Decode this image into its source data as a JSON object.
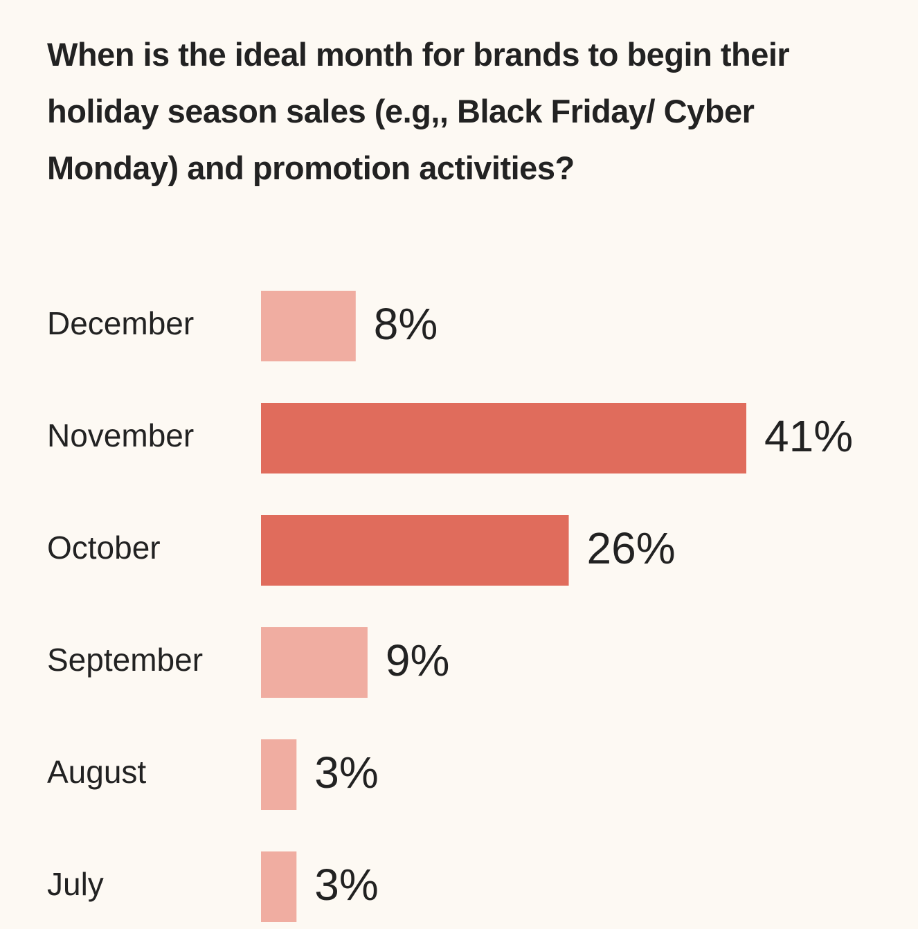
{
  "chart_data": {
    "type": "bar",
    "orientation": "horizontal",
    "title": "When is the ideal month for brands to begin their holiday season sales (e.g,, Black Friday/ Cyber Monday) and promotion activities?",
    "categories": [
      "December",
      "November",
      "October",
      "September",
      "August",
      "July"
    ],
    "values": [
      8,
      41,
      26,
      9,
      3,
      3
    ],
    "value_labels": [
      "8%",
      "41%",
      "26%",
      "9%",
      "3%",
      "3%"
    ],
    "colors": [
      "#f0ada1",
      "#e06c5c",
      "#e06c5c",
      "#f0ada1",
      "#f0ada1",
      "#f0ada1"
    ]
  }
}
